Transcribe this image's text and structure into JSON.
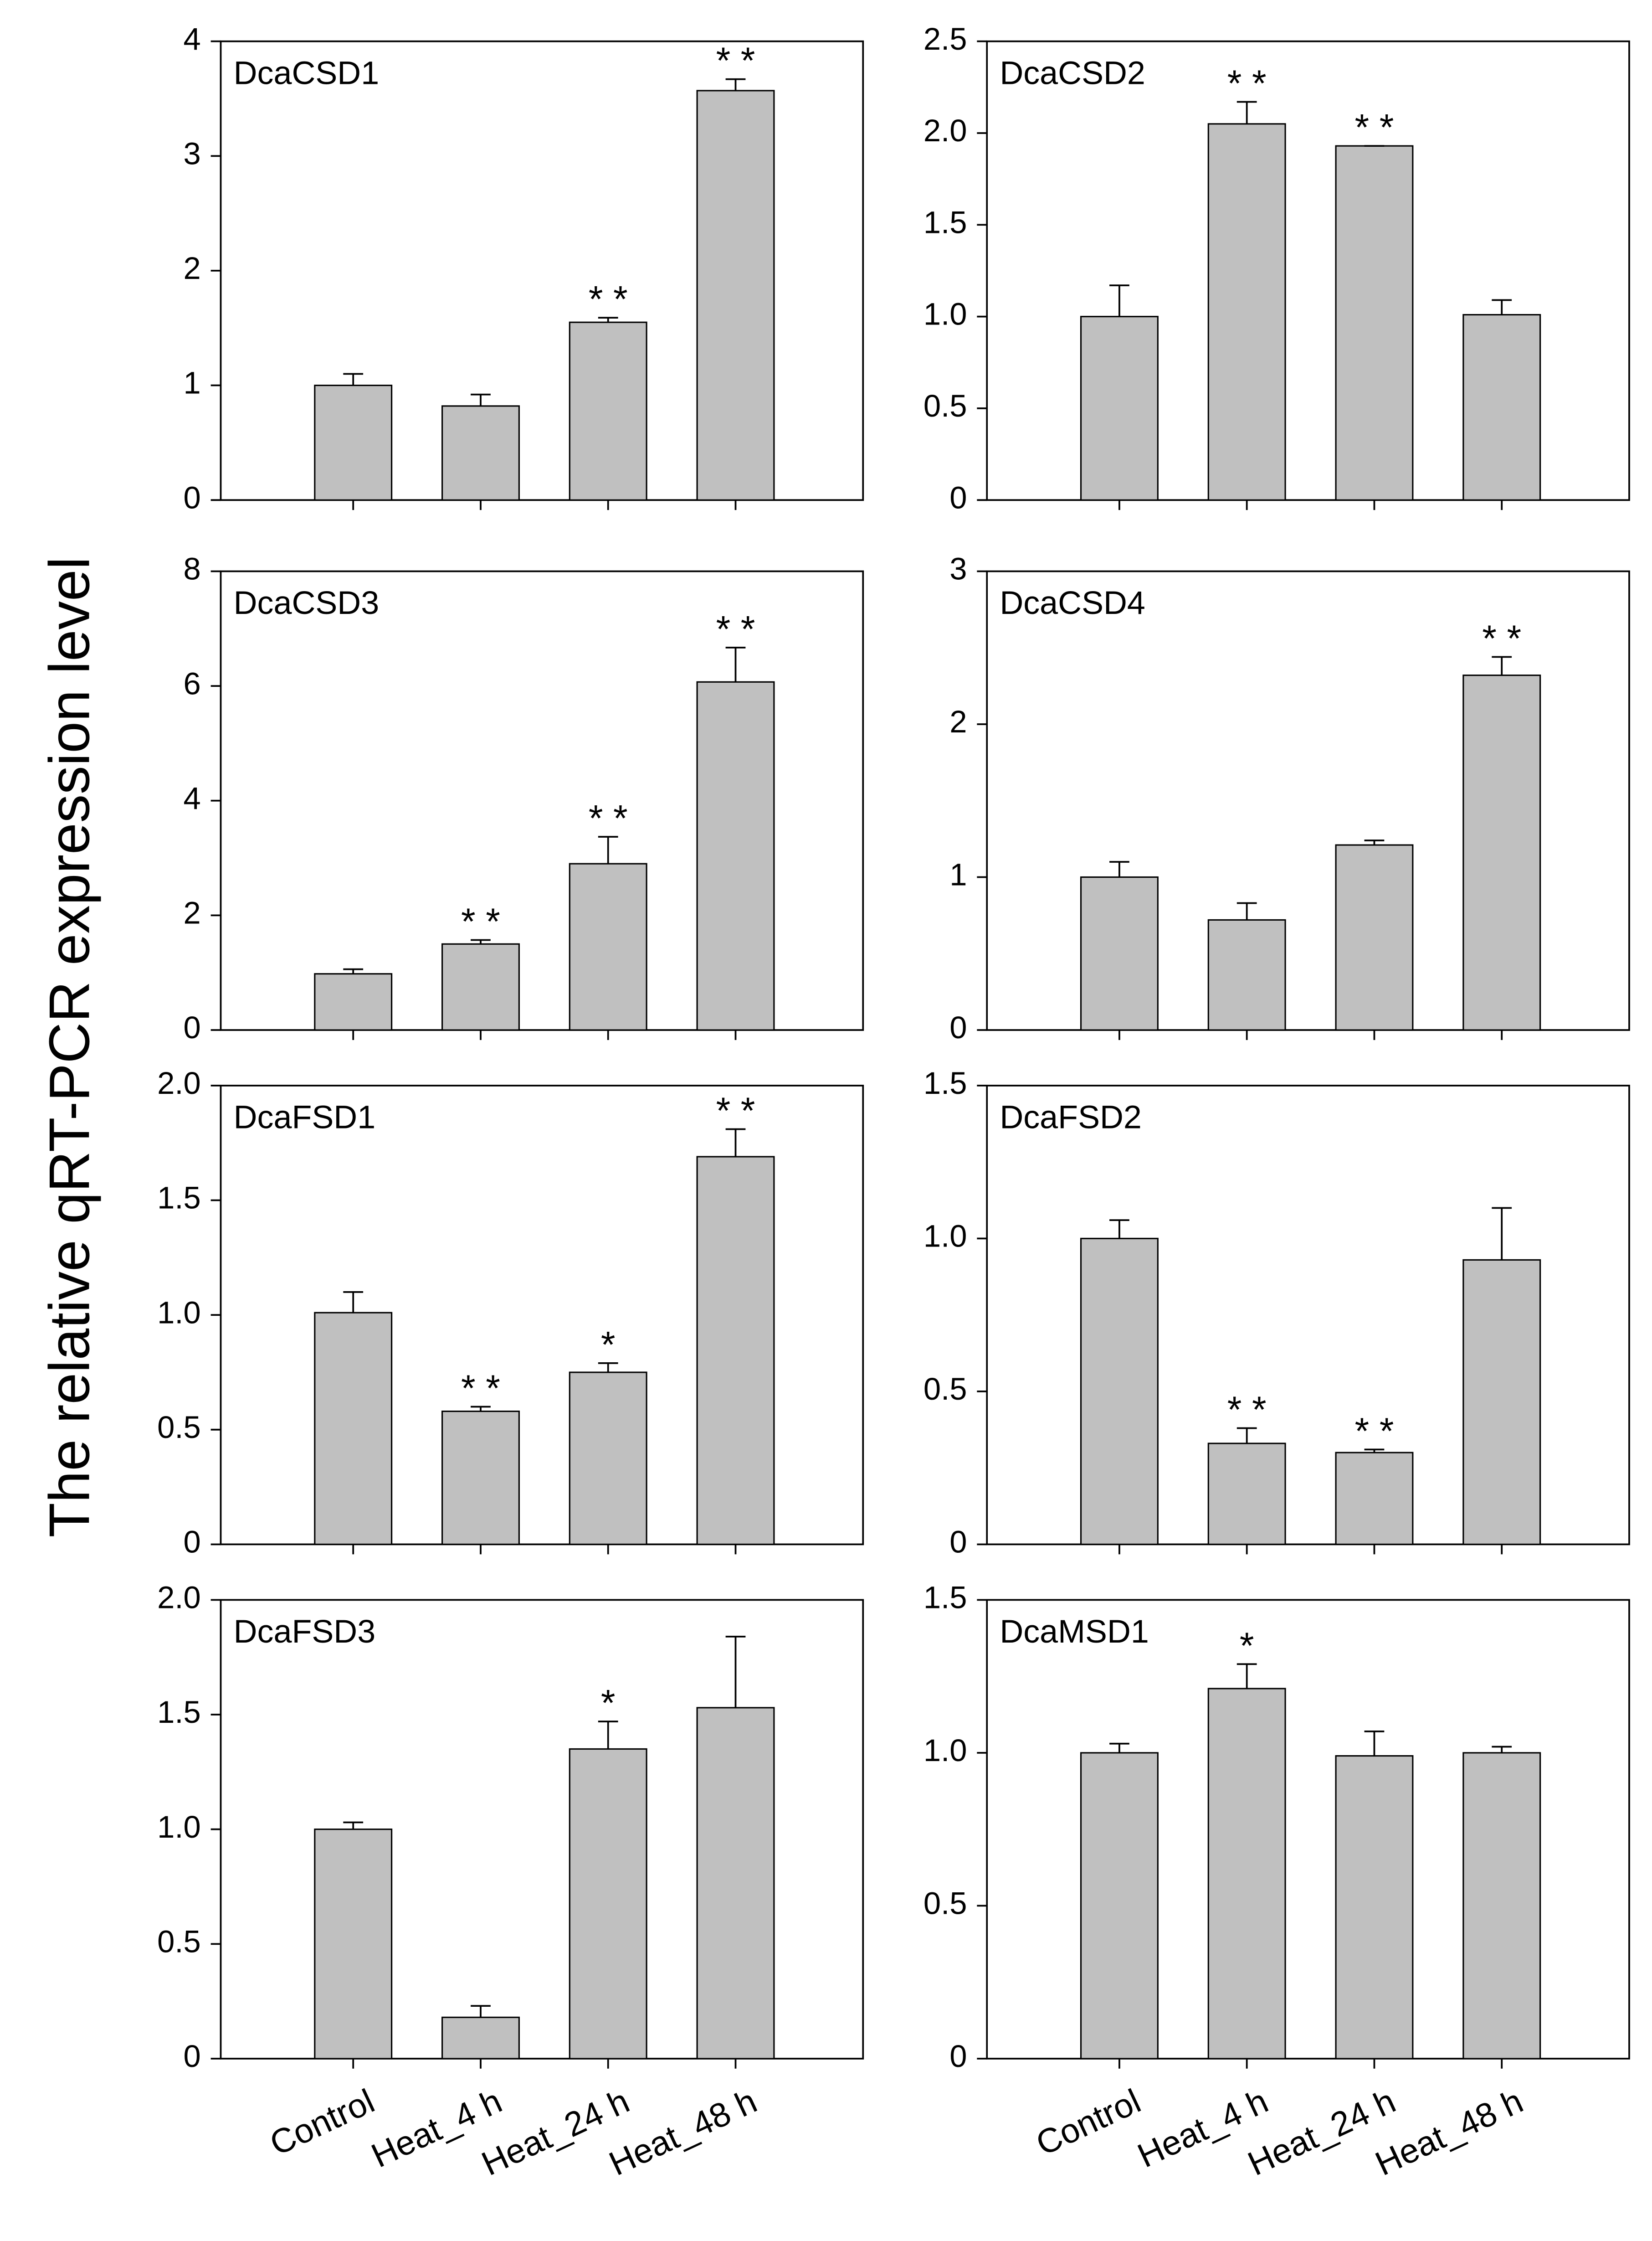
{
  "ylabel": "The relative qRT-PCR expression level",
  "chart_data": [
    {
      "type": "bar",
      "title": "DcaCSD1",
      "color": "#c0c0c0",
      "categories": [
        null,
        null,
        null,
        null
      ],
      "values": [
        1.0,
        0.82,
        1.55,
        3.57
      ],
      "errors": [
        0.1,
        0.1,
        0.04,
        0.1
      ],
      "significance": [
        null,
        null,
        "* *",
        "* *"
      ],
      "ylim": [
        0,
        4
      ],
      "yticks": [
        0,
        1,
        2,
        3,
        4
      ]
    },
    {
      "type": "bar",
      "title": "DcaCSD2",
      "color": "#c0c0c0",
      "categories": [
        null,
        null,
        null,
        null
      ],
      "values": [
        1.0,
        2.05,
        1.93,
        1.01
      ],
      "errors": [
        0.17,
        0.12,
        0.0,
        0.08
      ],
      "significance": [
        null,
        "* *",
        "* *",
        null
      ],
      "ylim": [
        0,
        2.5
      ],
      "yticks": [
        0,
        0.5,
        {
          "value": 1,
          "label": "1.0"
        },
        1.5,
        {
          "value": 2,
          "label": "2.0"
        },
        2.5
      ]
    },
    {
      "type": "bar",
      "title": "DcaCSD3",
      "color": "#c0c0c0",
      "categories": [
        null,
        null,
        null,
        null
      ],
      "values": [
        0.98,
        1.5,
        2.9,
        6.07
      ],
      "errors": [
        0.08,
        0.07,
        0.47,
        0.6
      ],
      "significance": [
        null,
        "* *",
        "* *",
        "* *"
      ],
      "ylim": [
        0,
        8
      ],
      "yticks": [
        0,
        2,
        4,
        6,
        8
      ]
    },
    {
      "type": "bar",
      "title": "DcaCSD4",
      "color": "#c0c0c0",
      "categories": [
        null,
        null,
        null,
        null
      ],
      "values": [
        1.0,
        0.72,
        1.21,
        2.32
      ],
      "errors": [
        0.1,
        0.11,
        0.03,
        0.12
      ],
      "significance": [
        null,
        null,
        null,
        "* *"
      ],
      "ylim": [
        0,
        3
      ],
      "yticks": [
        0,
        1,
        2,
        3
      ]
    },
    {
      "type": "bar",
      "title": "DcaFSD1",
      "color": "#c0c0c0",
      "categories": [
        null,
        null,
        null,
        null
      ],
      "values": [
        1.01,
        0.58,
        0.75,
        1.69
      ],
      "errors": [
        0.09,
        0.02,
        0.04,
        0.12
      ],
      "significance": [
        null,
        "* *",
        "*",
        "* *"
      ],
      "ylim": [
        0,
        2
      ],
      "yticks": [
        0,
        0.5,
        {
          "value": 1,
          "label": "1.0"
        },
        1.5,
        {
          "value": 2,
          "label": "2.0"
        }
      ]
    },
    {
      "type": "bar",
      "title": "DcaFSD2",
      "color": "#c0c0c0",
      "categories": [
        null,
        null,
        null,
        null
      ],
      "values": [
        1.0,
        0.33,
        0.3,
        0.93
      ],
      "errors": [
        0.06,
        0.05,
        0.01,
        0.17
      ],
      "significance": [
        null,
        "* *",
        "* *",
        null
      ],
      "ylim": [
        0,
        1.5
      ],
      "yticks": [
        0,
        0.5,
        {
          "value": 1,
          "label": "1.0"
        },
        1.5
      ]
    },
    {
      "type": "bar",
      "title": "DcaFSD3",
      "color": "#c0c0c0",
      "categories": [
        "Control",
        "Heat_4 h",
        "Heat_24 h",
        "Heat_48 h"
      ],
      "values": [
        1.0,
        0.18,
        1.35,
        1.53
      ],
      "errors": [
        0.03,
        0.05,
        0.12,
        0.31
      ],
      "significance": [
        null,
        null,
        "*",
        null
      ],
      "ylim": [
        0,
        2
      ],
      "yticks": [
        0,
        0.5,
        {
          "value": 1,
          "label": "1.0"
        },
        1.5,
        {
          "value": 2,
          "label": "2.0"
        }
      ]
    },
    {
      "type": "bar",
      "title": "DcaMSD1",
      "color": "#c0c0c0",
      "categories": [
        "Control",
        "Heat_4 h",
        "Heat_24 h",
        "Heat_48 h"
      ],
      "values": [
        1.0,
        1.21,
        0.99,
        1.0
      ],
      "errors": [
        0.03,
        0.08,
        0.08,
        0.02
      ],
      "significance": [
        null,
        "*",
        null,
        null
      ],
      "ylim": [
        0,
        1.5
      ],
      "yticks": [
        0,
        0.5,
        {
          "value": 1,
          "label": "1.0"
        },
        1.5
      ]
    }
  ]
}
